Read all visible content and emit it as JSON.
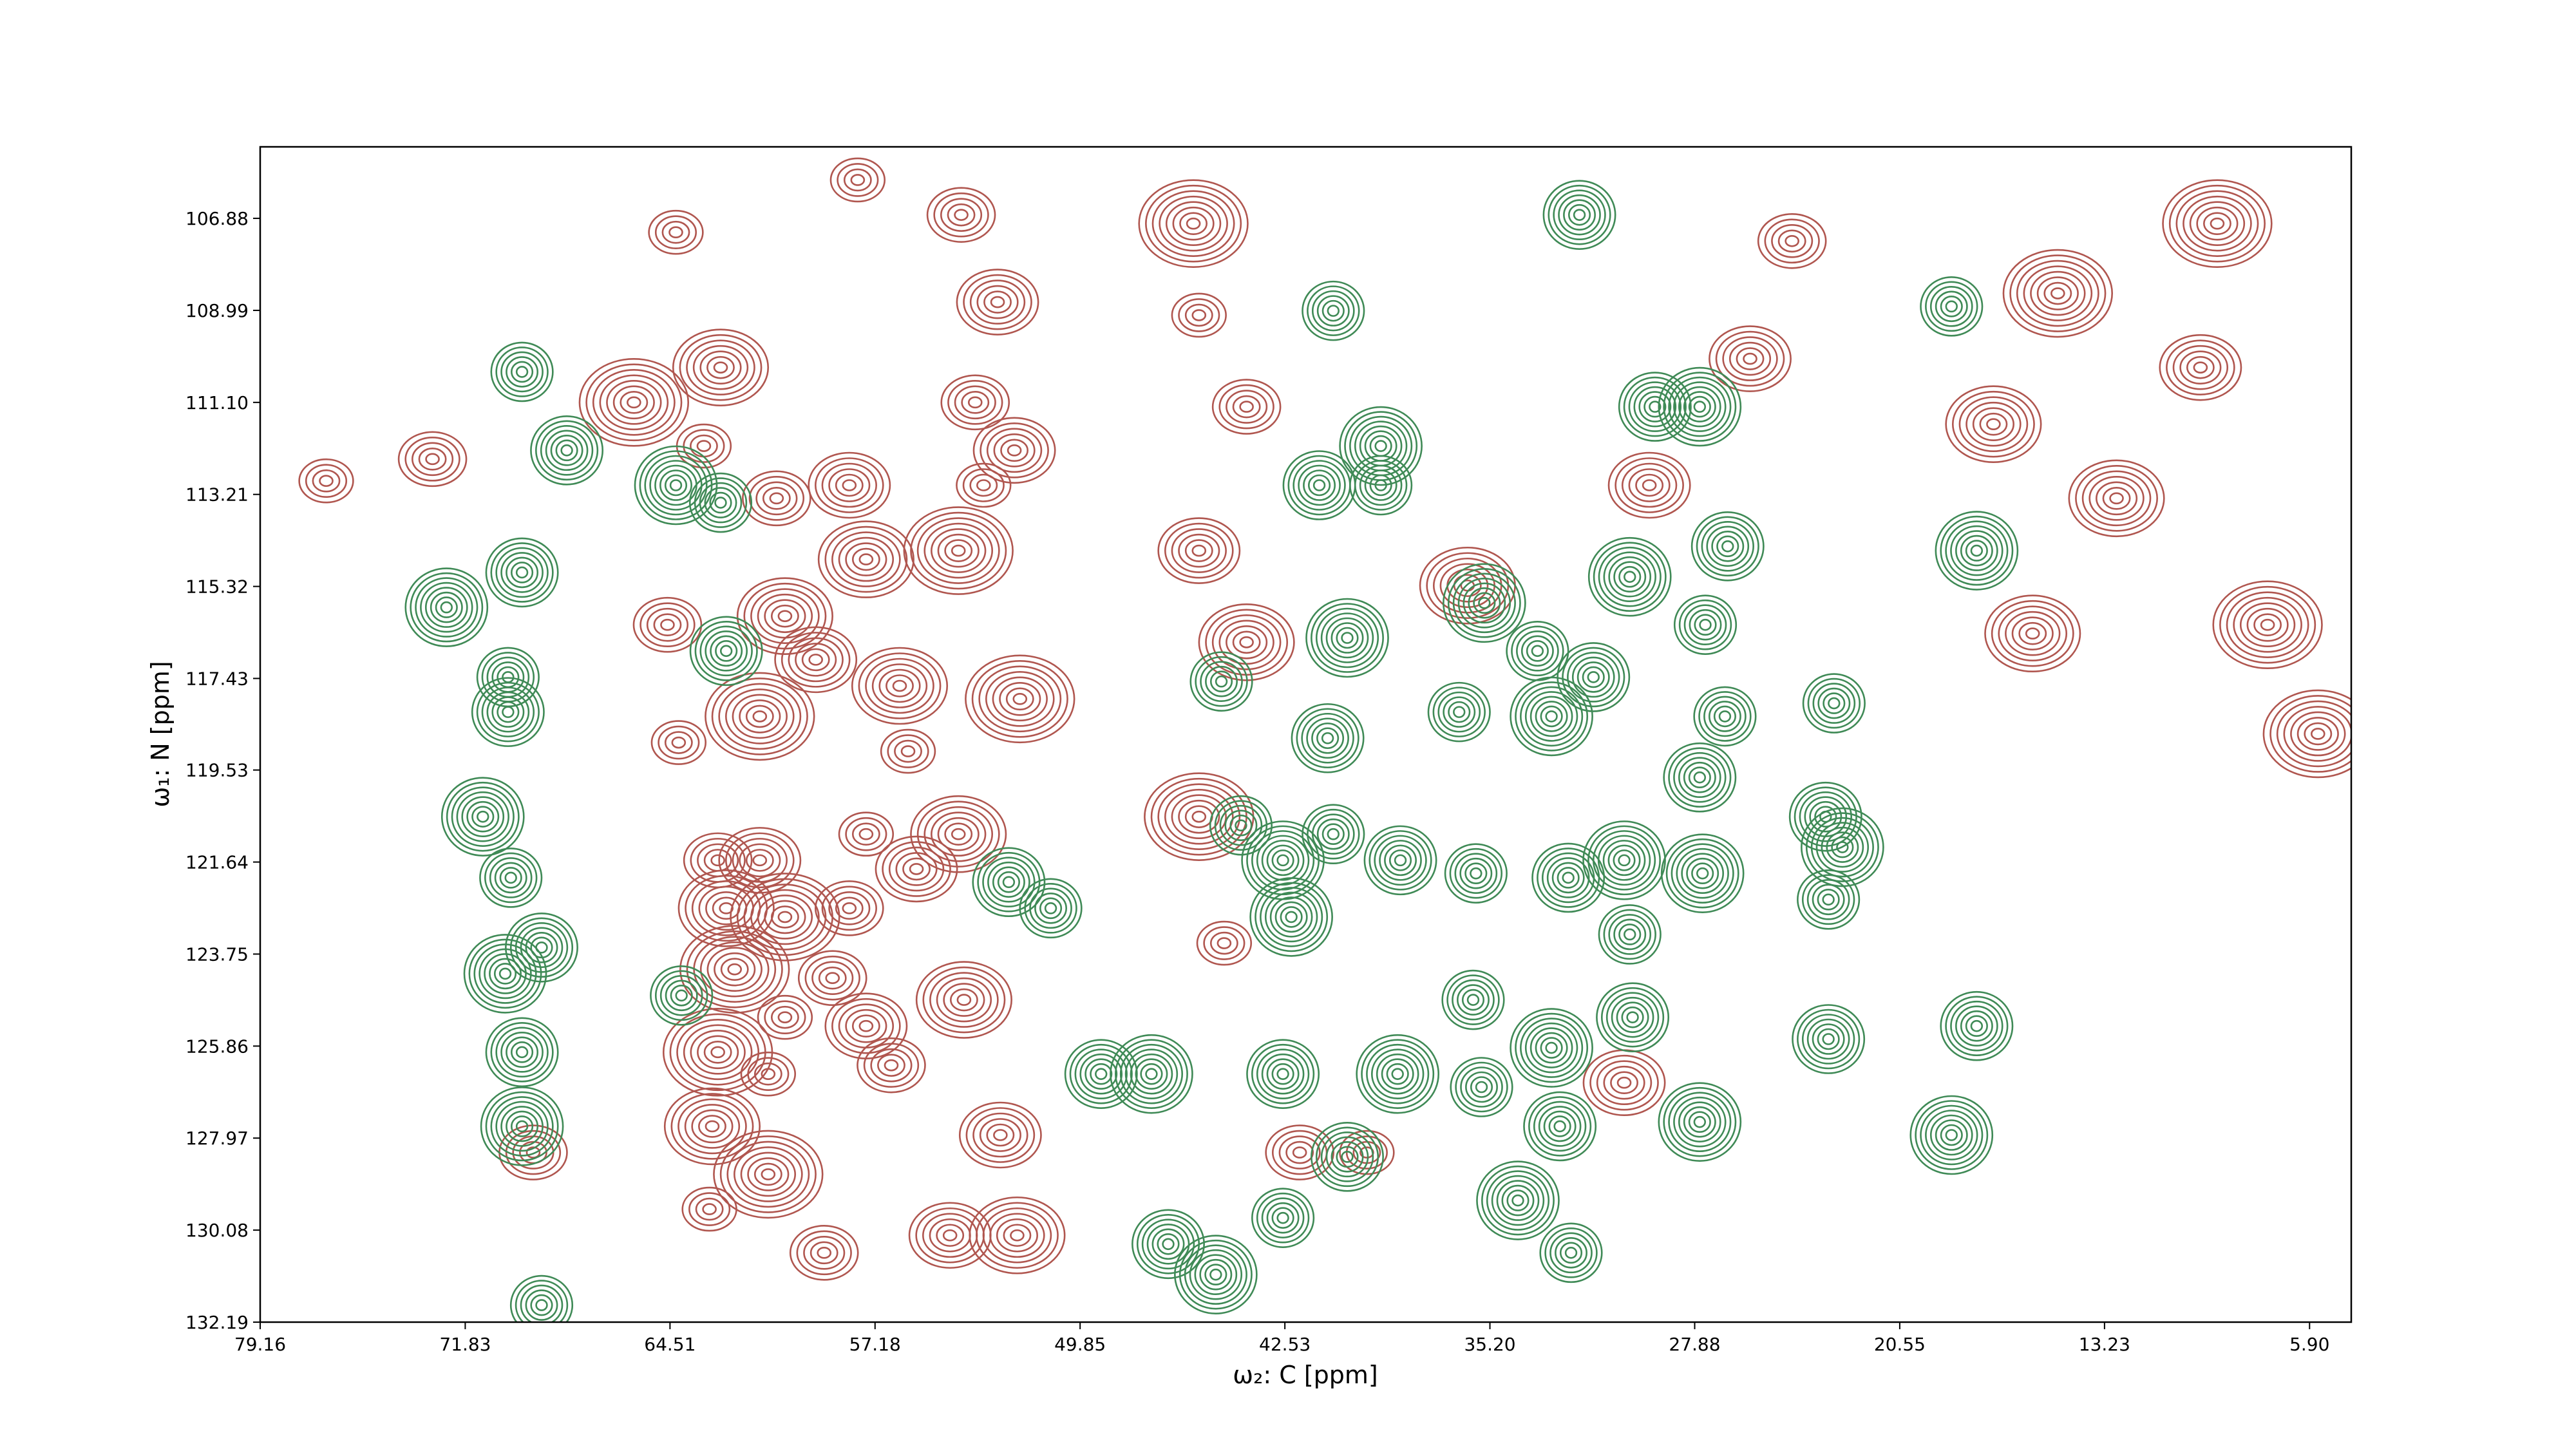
{
  "chart_data": {
    "type": "contour",
    "x_label": "ω₂: C [ppm]",
    "y_label": "ω₁: N [ppm]",
    "xlim": [
      79.16,
      4.41
    ],
    "ylim": [
      105.24,
      132.19
    ],
    "xticks": [
      79.16,
      71.83,
      64.51,
      57.18,
      49.85,
      42.53,
      {
        "value": 35.2,
        "label": "35.20"
      },
      27.88,
      20.55,
      13.23,
      {
        "value": 5.9,
        "label": "5.90"
      }
    ],
    "yticks": [
      106.88,
      108.99,
      {
        "value": 111.1,
        "label": "111.10"
      },
      113.21,
      115.32,
      117.43,
      119.53,
      121.64,
      123.75,
      125.86,
      127.97,
      {
        "value": 130.08,
        "label": "130.08"
      },
      132.19
    ],
    "series": [
      {
        "color": "#b0564f",
        "x": [
          64.3,
          54.1,
          52.8,
          62.7,
          65.8,
          63.3,
          60.7,
          58.1,
          57.5,
          54.2,
          53.3,
          53.6,
          52.2,
          60.4,
          61.3,
          64.2,
          64.6,
          59.3,
          56.3,
          52.0,
          56.0,
          62.8,
          61.3,
          62.5,
          60.4,
          57.5,
          58.1,
          55.7,
          54.2,
          62.2,
          60.4,
          58.7,
          57.5,
          54.0,
          62.8,
          61.0,
          56.6,
          52.7,
          63.0,
          61.0,
          63.1,
          59.0,
          54.5,
          52.1,
          45.8,
          45.6,
          43.9,
          45.6,
          43.9,
          45.6,
          44.7,
          24.4,
          25.9,
          17.2,
          9.2,
          76.8,
          73.0,
          29.5,
          15.8,
          7.4,
          39.6,
          42.0,
          30.4,
          36.0,
          14.9,
          57.8,
          69.4,
          9.8,
          12.8,
          5.6
        ],
        "y": [
          107.2,
          106.8,
          108.8,
          110.3,
          111.1,
          112.1,
          113.3,
          113.0,
          114.7,
          114.5,
          113.0,
          111.1,
          112.2,
          116.0,
          118.3,
          118.9,
          116.2,
          117.0,
          117.6,
          117.9,
          119.1,
          121.6,
          121.6,
          122.7,
          122.9,
          121.0,
          122.7,
          121.8,
          121.0,
          124.1,
          125.2,
          124.3,
          125.4,
          124.8,
          126.0,
          126.5,
          126.3,
          127.9,
          127.7,
          128.8,
          129.6,
          130.6,
          130.2,
          130.2,
          107.0,
          109.1,
          111.2,
          114.5,
          116.6,
          120.6,
          123.5,
          107.4,
          110.1,
          111.6,
          107.0,
          112.9,
          112.4,
          113.0,
          116.4,
          116.2,
          128.3,
          128.3,
          126.7,
          115.3,
          108.6,
          106.0,
          128.3,
          110.3,
          113.3,
          118.7
        ]
      },
      {
        "color": "#3f8a56",
        "x": [
          69.8,
          68.2,
          64.3,
          62.7,
          69.8,
          72.5,
          70.3,
          70.3,
          71.2,
          70.2,
          69.1,
          70.4,
          64.1,
          69.8,
          69.8,
          69.1,
          62.5,
          39.1,
          39.1,
          41.3,
          40.3,
          44.8,
          41.0,
          35.4,
          33.5,
          31.5,
          33.0,
          36.3,
          26.7,
          30.2,
          27.5,
          29.3,
          27.7,
          26.8,
          27.7,
          27.6,
          22.9,
          23.2,
          22.6,
          23.1,
          23.1,
          17.8,
          18.7,
          17.8,
          18.7,
          40.8,
          32.0,
          42.6,
          40.8,
          38.4,
          42.3,
          35.7,
          32.4,
          30.4,
          30.2,
          30.1,
          33.0,
          35.8,
          42.6,
          38.5,
          35.5,
          32.7,
          27.7,
          44.1,
          46.7,
          45.0,
          42.6,
          40.3,
          34.2,
          32.3,
          49.1,
          47.3,
          50.9,
          52.4
        ],
        "y": [
          110.4,
          112.2,
          113.0,
          113.4,
          115.0,
          115.8,
          117.4,
          118.2,
          120.6,
          122.0,
          123.6,
          124.2,
          124.7,
          126.0,
          127.7,
          131.8,
          116.8,
          112.1,
          113.0,
          113.0,
          116.5,
          117.5,
          118.8,
          115.7,
          116.8,
          117.4,
          118.3,
          118.2,
          114.4,
          115.1,
          116.2,
          111.2,
          111.2,
          118.3,
          119.7,
          121.9,
          118.0,
          120.6,
          121.3,
          122.5,
          125.7,
          114.5,
          108.9,
          125.4,
          127.9,
          109.0,
          106.8,
          121.6,
          121.0,
          121.6,
          122.9,
          121.9,
          122.0,
          121.6,
          123.3,
          125.2,
          125.9,
          124.8,
          126.5,
          126.5,
          126.8,
          127.7,
          127.6,
          120.8,
          130.4,
          131.1,
          129.8,
          128.4,
          129.4,
          130.6,
          126.5,
          126.5,
          122.7,
          122.1
        ]
      }
    ]
  }
}
